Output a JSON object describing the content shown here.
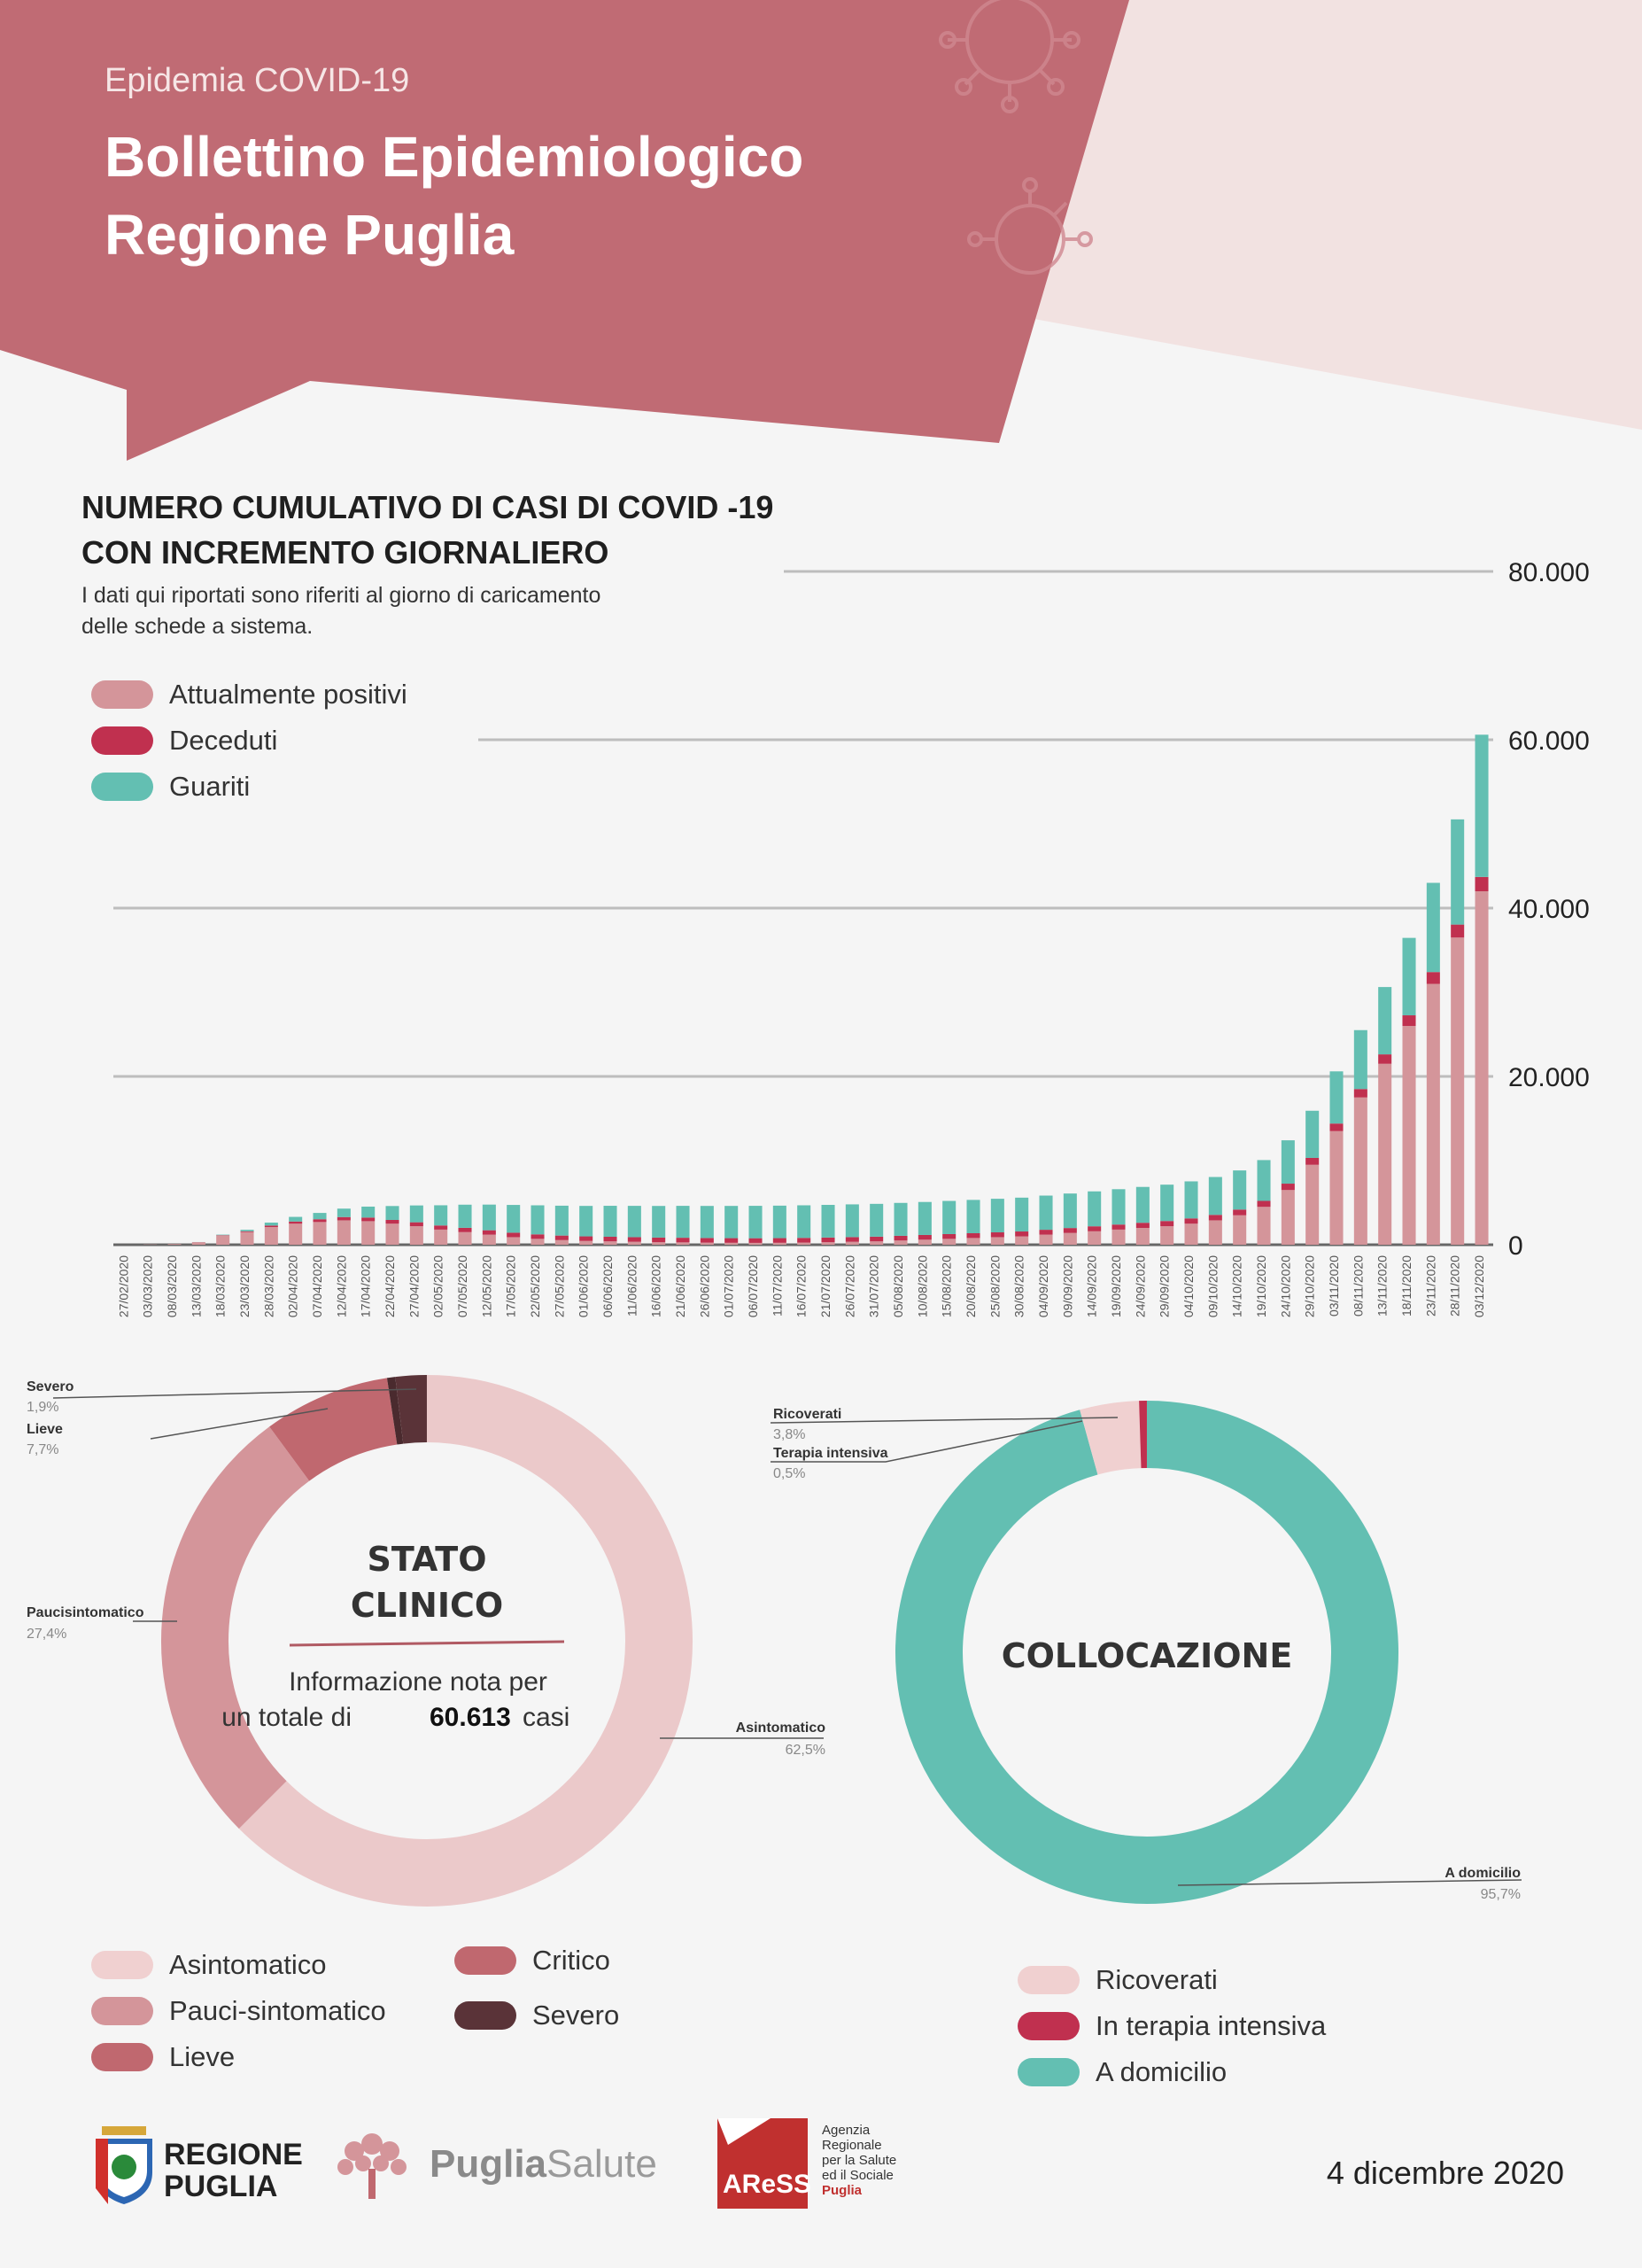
{
  "header": {
    "kicker": "Epidemia COVID-19",
    "title_line1": "Bollettino Epidemiologico",
    "title_line2": "Regione Puglia"
  },
  "colors": {
    "header_red": "#c06b74",
    "header_light": "#f2e2e1",
    "attualmente_positivi": "#d4959a",
    "deceduti": "#c0304f",
    "guariti": "#63bfb2",
    "asintomatico": "#ebc9ca",
    "pauci": "#d4959a",
    "lieve": "#c0686f",
    "critico": "#c0686f",
    "severo": "#5a3338",
    "ricoverati": "#f0d0d0",
    "terapia_intensiva": "#c0304f",
    "domicilio": "#63bfb2"
  },
  "chart_section": {
    "title_line1": "NUMERO CUMULATIVO DI CASI DI COVID -19",
    "title_line2": "CON INCREMENTO GIORNALIERO",
    "subtitle_line1": "I dati qui riportati sono riferiti al giorno di caricamento",
    "subtitle_line2": "delle schede a sistema.",
    "legend": [
      "Attualmente positivi",
      "Deceduti",
      "Guariti"
    ]
  },
  "chart_data": [
    {
      "type": "bar",
      "stacked": true,
      "x_ticks": [
        "27/02/2020",
        "03/03/2020",
        "08/03/2020",
        "13/03/2020",
        "18/03/2020",
        "23/03/2020",
        "28/03/2020",
        "02/04/2020",
        "07/04/2020",
        "12/04/2020",
        "17/04/2020",
        "22/04/2020",
        "27/04/2020",
        "02/05/2020",
        "07/05/2020",
        "12/05/2020",
        "17/05/2020",
        "22/05/2020",
        "27/05/2020",
        "01/06/2020",
        "06/06/2020",
        "11/06/2020",
        "16/06/2020",
        "21/06/2020",
        "26/06/2020",
        "01/07/2020",
        "06/07/2020",
        "11/07/2020",
        "16/07/2020",
        "21/07/2020",
        "26/07/2020",
        "31/07/2020",
        "05/08/2020",
        "10/08/2020",
        "15/08/2020",
        "20/08/2020",
        "25/08/2020",
        "30/08/2020",
        "04/09/2020",
        "09/09/2020",
        "14/09/2020",
        "19/09/2020",
        "24/09/2020",
        "29/09/2020",
        "04/10/2020",
        "09/10/2020",
        "14/10/2020",
        "19/10/2020",
        "24/10/2020",
        "29/10/2020",
        "03/11/2020",
        "08/11/2020",
        "13/11/2020",
        "18/11/2020",
        "23/11/2020",
        "28/11/2020",
        "03/12/2020"
      ],
      "y_ticks": [
        "0",
        "20.000",
        "40.000",
        "60.000",
        "80.000"
      ],
      "ylim": [
        0,
        80000
      ],
      "series": [
        {
          "name": "Attualmente positivi",
          "values": [
            1,
            30,
            80,
            300,
            1100,
            1500,
            2100,
            2500,
            2700,
            2900,
            2800,
            2500,
            2200,
            1800,
            1500,
            1200,
            900,
            700,
            550,
            450,
            400,
            350,
            300,
            280,
            250,
            230,
            220,
            230,
            260,
            300,
            350,
            400,
            500,
            600,
            700,
            800,
            900,
            1000,
            1200,
            1400,
            1600,
            1800,
            2000,
            2200,
            2500,
            2900,
            3500,
            4500,
            6500,
            9500,
            13500,
            17500,
            21500,
            26000,
            31000,
            36500,
            42000
          ]
        },
        {
          "name": "Deceduti",
          "values": [
            0,
            0,
            1,
            10,
            40,
            100,
            180,
            260,
            330,
            390,
            430,
            450,
            470,
            490,
            510,
            520,
            530,
            535,
            540,
            545,
            548,
            550,
            550,
            551,
            552,
            553,
            554,
            555,
            556,
            557,
            558,
            559,
            560,
            562,
            565,
            568,
            572,
            576,
            580,
            586,
            592,
            600,
            610,
            620,
            630,
            650,
            680,
            710,
            760,
            820,
            900,
            1000,
            1120,
            1260,
            1400,
            1540,
            1700
          ]
        },
        {
          "name": "Guariti",
          "values": [
            0,
            0,
            0,
            10,
            60,
            180,
            350,
            550,
            750,
            1000,
            1300,
            1650,
            2000,
            2400,
            2750,
            3050,
            3300,
            3450,
            3550,
            3620,
            3680,
            3720,
            3760,
            3790,
            3810,
            3830,
            3850,
            3860,
            3870,
            3880,
            3890,
            3900,
            3910,
            3920,
            3940,
            3960,
            3990,
            4020,
            4060,
            4100,
            4150,
            4200,
            4260,
            4320,
            4400,
            4500,
            4650,
            4850,
            5150,
            5600,
            6200,
            7000,
            8000,
            9200,
            10600,
            12500,
            16900
          ]
        }
      ]
    },
    {
      "type": "pie",
      "donut": true,
      "title": "STATO CLINICO",
      "categories": [
        "Asintomatico",
        "Paucisintomatico",
        "Lieve",
        "Critico",
        "Severo"
      ],
      "values": [
        62.5,
        27.4,
        7.7,
        0.5,
        1.9
      ]
    },
    {
      "type": "pie",
      "donut": true,
      "title": "COLLOCAZIONE",
      "categories": [
        "A domicilio",
        "Ricoverati",
        "Terapia intensiva"
      ],
      "values": [
        95.7,
        3.8,
        0.5
      ]
    }
  ],
  "donut1": {
    "title1": "STATO",
    "title2": "CLINICO",
    "info_line1": "Informazione nota per",
    "info_line2_prefix": "un totale di",
    "info_total": "60.613",
    "info_line2_suffix": "casi",
    "callouts": {
      "severo_name": "Severo",
      "severo_val": "1,9%",
      "lieve_name": "Lieve",
      "lieve_val": "7,7%",
      "pauci_name": "Paucisintomatico",
      "pauci_val": "27,4%",
      "asint_name": "Asintomatico",
      "asint_val": "62,5%"
    },
    "legend": [
      "Asintomatico",
      "Pauci-sintomatico",
      "Lieve",
      "Critico",
      "Severo"
    ]
  },
  "donut2": {
    "title": "COLLOCAZIONE",
    "callouts": {
      "ric_name": "Ricoverati",
      "ric_val": "3,8%",
      "ti_name": "Terapia intensiva",
      "ti_val": "0,5%",
      "dom_name": "A domicilio",
      "dom_val": "95,7%"
    },
    "legend": [
      "Ricoverati",
      "In terapia intensiva",
      "A domicilio"
    ]
  },
  "footer": {
    "regione_line1": "REGIONE",
    "regione_line2": "PUGLIA",
    "puglia_salute_bold": "Puglia",
    "puglia_salute_light": "Salute",
    "aress_logo": "AReSS",
    "aress_line1": "Agenzia",
    "aress_line2": "Regionale",
    "aress_line3": "per la Salute",
    "aress_line4": "ed il Sociale",
    "aress_line5": "Puglia",
    "date": "4 dicembre 2020"
  }
}
